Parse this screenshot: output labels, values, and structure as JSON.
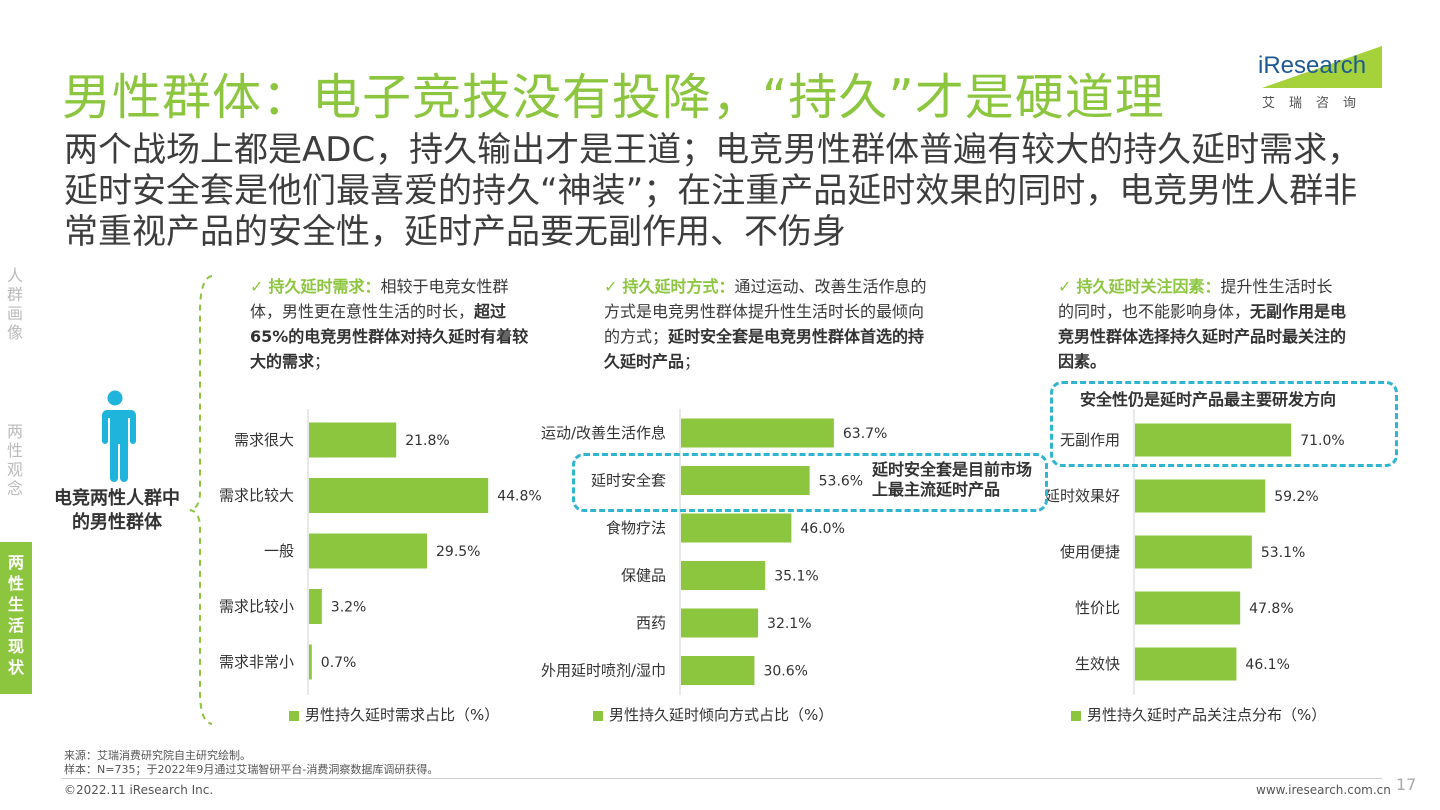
{
  "title": "男性群体：电子竞技没有投降，“持久”才是硬道理",
  "subtitle": "两个战场上都是ADC，持久输出才是王道；电竞男性群体普遍有较大的持久延时需求，延时安全套是他们最喜爱的持久“神装”；在注重产品延时效果的同时，电竞男性人群非常重视产品的安全性，延时产品要无副作用、不伤身",
  "logo": {
    "text": "iResearch",
    "sub": "艾瑞咨询"
  },
  "side_nav": [
    {
      "label": "人群画像",
      "active": false
    },
    {
      "label": "两性观念",
      "active": false
    },
    {
      "label": "两性生活现状",
      "active": true
    }
  ],
  "group_label": "电竞两性人群中的男性群体",
  "columns": [
    {
      "check": "✓",
      "heading": "持久延时需求：",
      "text_plain": "相较于电竞女性群体，男性更在意性生活的时长，",
      "text_bold": "超过65%的电竞男性群体对持久延时有着较大的需求",
      "text_end": "；"
    },
    {
      "check": "✓",
      "heading": "持久延时方式：",
      "text_plain": "通过运动、改善生活作息的方式是电竞男性群体提升性生活时长的最倾向的方式；",
      "text_bold": "延时安全套是电竞男性群体首选的持久延时产品",
      "text_end": "；"
    },
    {
      "check": "✓",
      "heading": "持久延时关注因素：",
      "text_plain": "提升性生活时长的同时，也不能影响身体，",
      "text_bold": "无副作用是电竞男性群体选择持久延时产品时最关注的因素。",
      "text_end": ""
    }
  ],
  "chart_data": [
    {
      "type": "bar",
      "orientation": "horizontal",
      "categories": [
        "需求很大",
        "需求比较大",
        "一般",
        "需求比较小",
        "需求非常小"
      ],
      "values": [
        21.8,
        44.8,
        29.5,
        3.2,
        0.7
      ],
      "labels": [
        "21.8%",
        "44.8%",
        "29.5%",
        "3.2%",
        "0.7%"
      ],
      "legend": "男性持久延时需求占比（%）",
      "color": "#8cc63f"
    },
    {
      "type": "bar",
      "orientation": "horizontal",
      "categories": [
        "运动/改善生活作息",
        "延时安全套",
        "食物疗法",
        "保健品",
        "西药",
        "外用延时喷剂/湿巾"
      ],
      "values": [
        63.7,
        53.6,
        46.0,
        35.1,
        32.1,
        30.6
      ],
      "labels": [
        "63.7%",
        "53.6%",
        "46.0%",
        "35.1%",
        "32.1%",
        "30.6%"
      ],
      "legend": "男性持久延时倾向方式占比（%）",
      "color": "#8cc63f"
    },
    {
      "type": "bar",
      "orientation": "horizontal",
      "categories": [
        "无副作用",
        "延时效果好",
        "使用便捷",
        "性价比",
        "生效快"
      ],
      "values": [
        71.0,
        59.2,
        53.1,
        47.8,
        46.1
      ],
      "labels": [
        "71.0%",
        "59.2%",
        "53.1%",
        "47.8%",
        "46.1%"
      ],
      "legend": "男性持久延时产品关注点分布（%）",
      "color": "#8cc63f"
    }
  ],
  "callouts": {
    "condom": "延时安全套是目前市场上最主流延时产品",
    "safety": "安全性仍是延时产品最主要研发方向"
  },
  "footer": {
    "source": "来源：艾瑞消费研究院自主研究绘制。",
    "sample": "样本：N=735；于2022年9月通过艾瑞智研平台-消费洞察数据库调研获得。",
    "copyright": "©2022.11 iResearch Inc.",
    "url": "www.iresearch.com.cn",
    "page": "17"
  },
  "colors": {
    "accent": "#8cc63f",
    "callout": "#2fb5d2",
    "logo_blue": "#1d5a93"
  }
}
